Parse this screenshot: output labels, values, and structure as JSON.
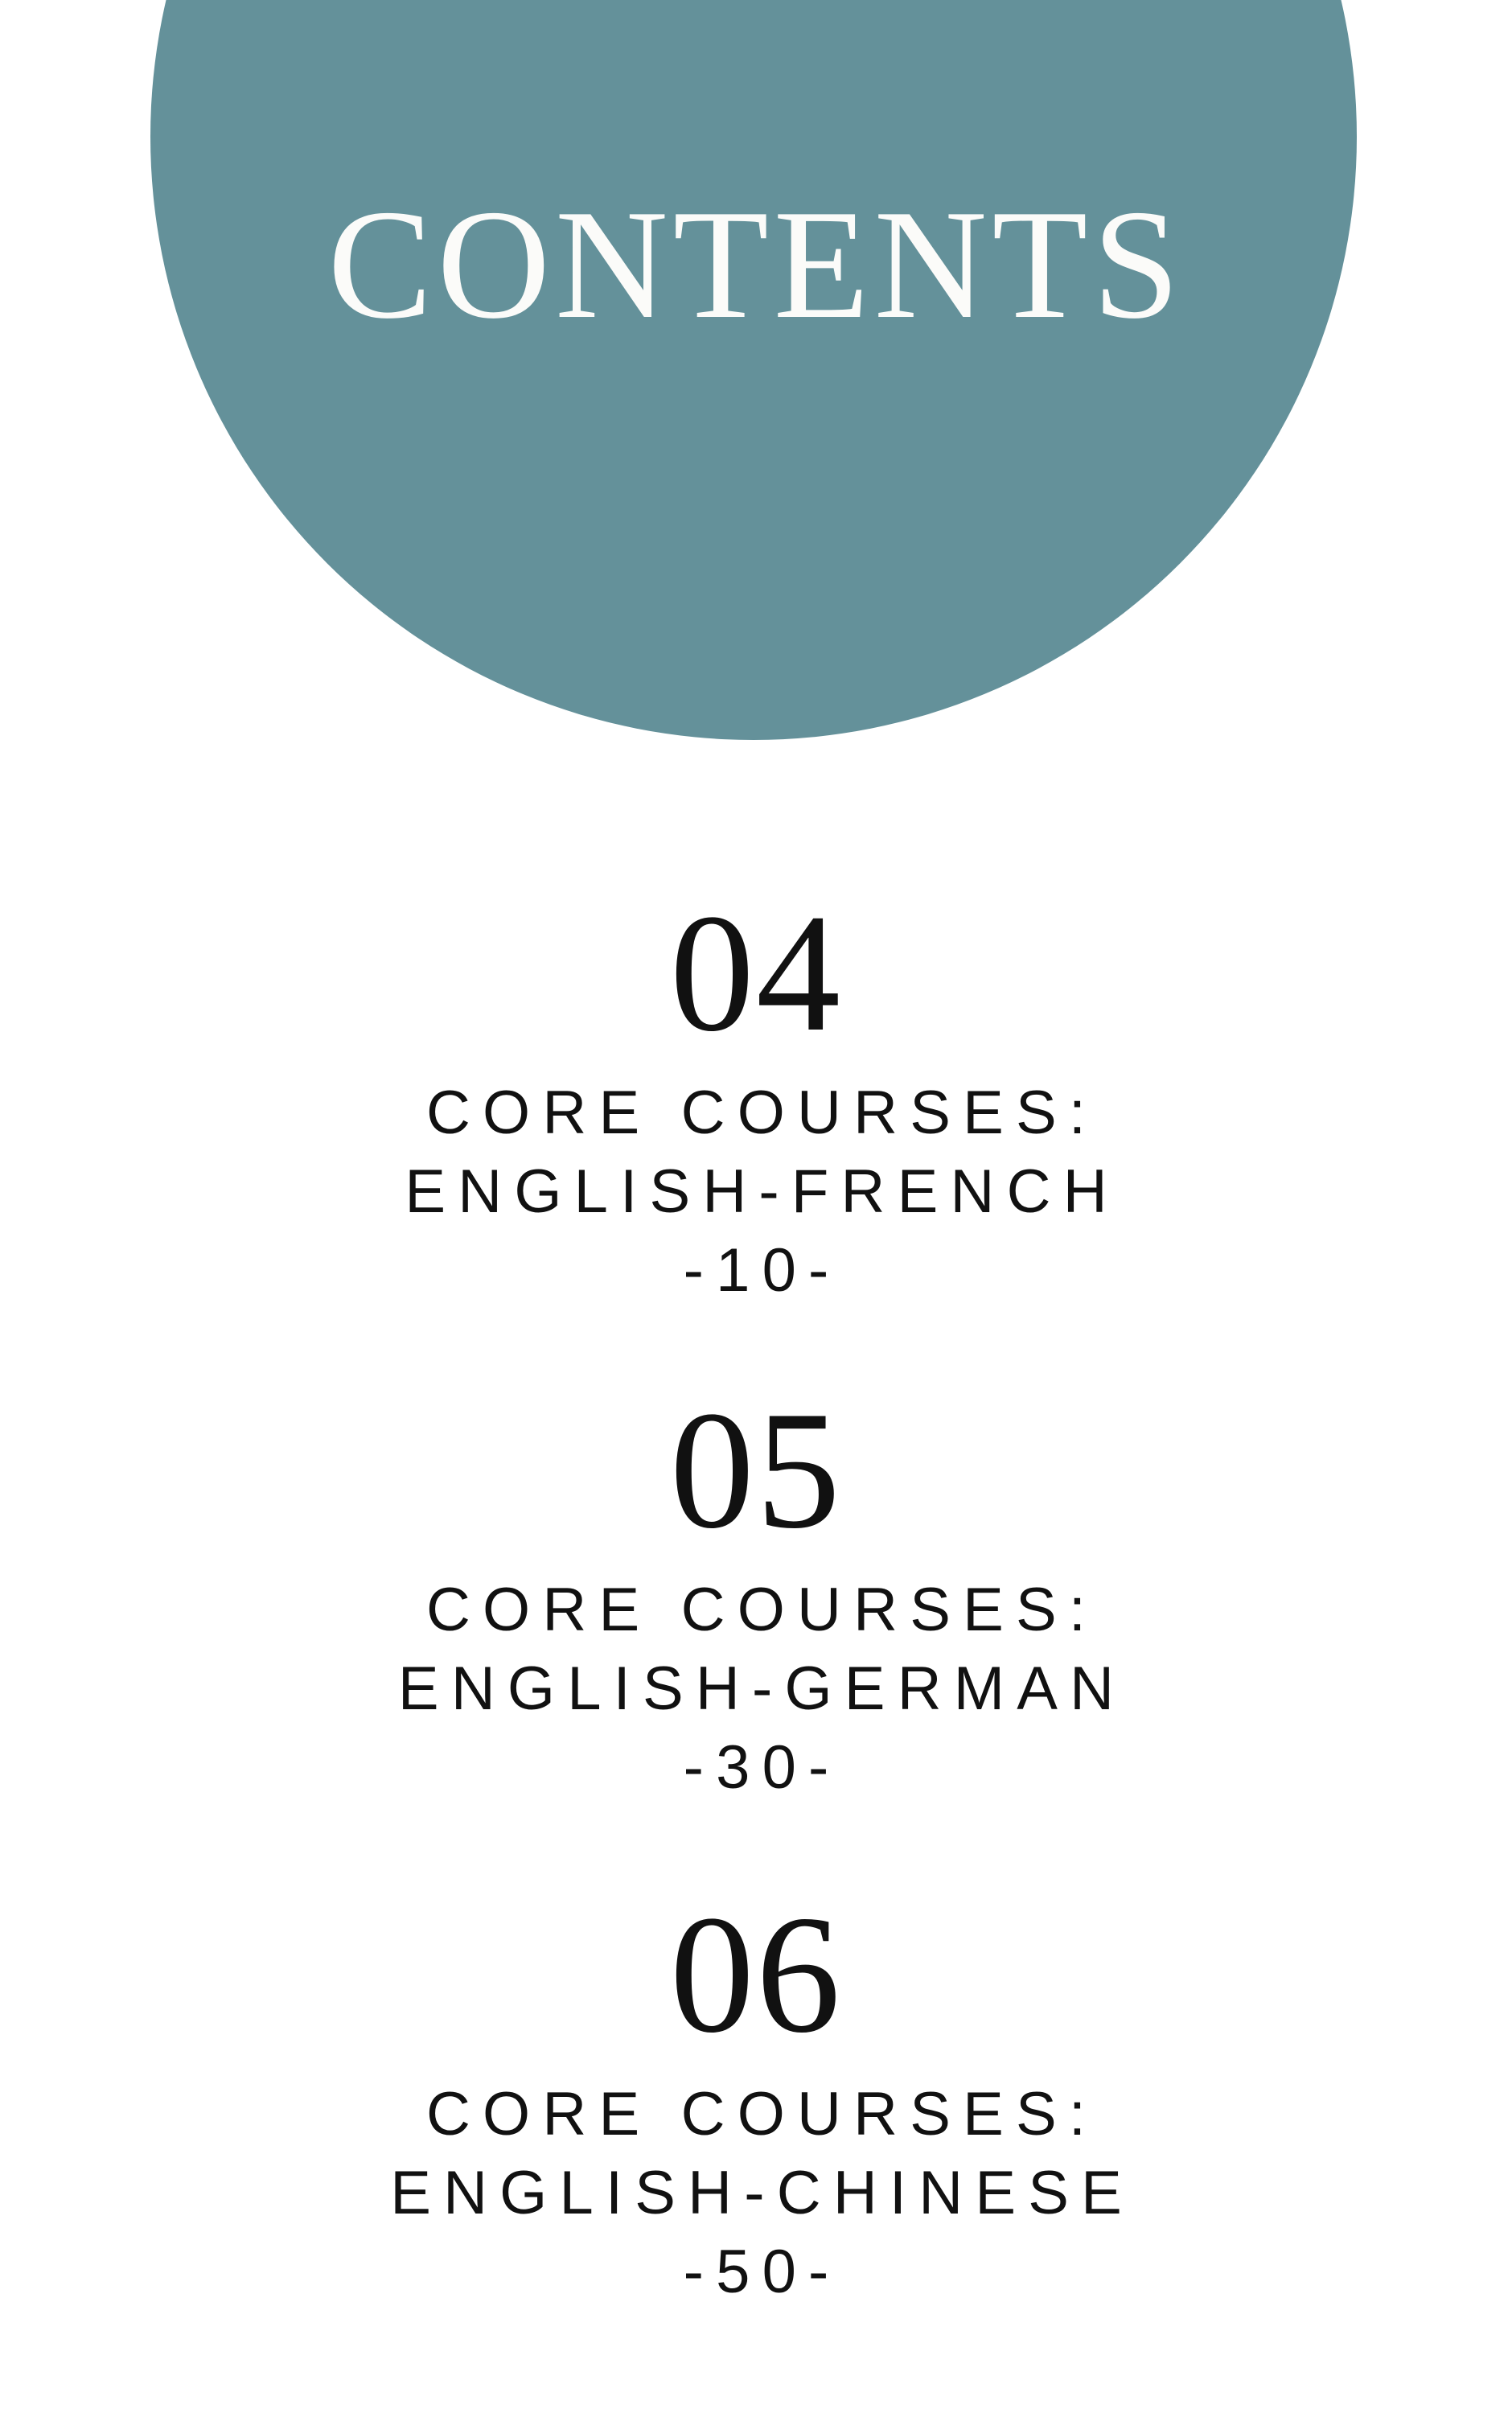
{
  "theme": {
    "page_bg": "#ffffff",
    "accent": "#64919a",
    "title_color": "#fbfbf9",
    "text_color": "#111111"
  },
  "header": {
    "title": "CONTENTS"
  },
  "sections": [
    {
      "number": "04",
      "line1": "CORE COURSES:",
      "line2": "ENGLISH-FRENCH",
      "page_ref": "-10-"
    },
    {
      "number": "05",
      "line1": "CORE COURSES:",
      "line2": "ENGLISH-GERMAN",
      "page_ref": "-30-"
    },
    {
      "number": "06",
      "line1": "CORE COURSES:",
      "line2": "ENGLISH-CHINESE",
      "page_ref": "-50-"
    }
  ]
}
